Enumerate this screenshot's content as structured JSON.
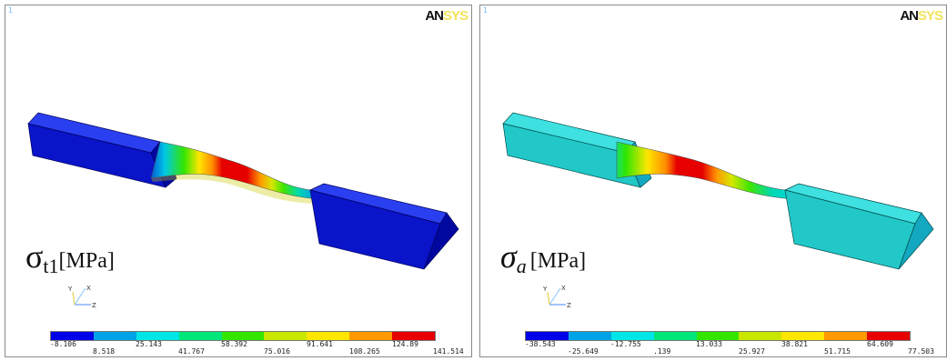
{
  "logo": {
    "part1": "AN",
    "part2": "SYS"
  },
  "window_number": "1",
  "colors": [
    "#0000e6",
    "#00a3e6",
    "#00e6e6",
    "#00e67a",
    "#33e600",
    "#c8e600",
    "#ffe600",
    "#ff9900",
    "#e60000"
  ],
  "plots": [
    {
      "id": "left",
      "label": {
        "symbol": "σ",
        "subscript": "t1",
        "unit": "[MPa]"
      },
      "legend_values": [
        "-8.106",
        "8.518",
        "25.143",
        "41.767",
        "58.392",
        "75.016",
        "91.641",
        "108.265",
        "124.89",
        "141.514"
      ]
    },
    {
      "id": "right",
      "label": {
        "symbol": "σ",
        "subscript": "a",
        "unit": "[MPa]"
      },
      "legend_values": [
        "-38.543",
        "-25.649",
        "-12.755",
        ".139",
        "13.033",
        "25.927",
        "38.821",
        "51.715",
        "64.609",
        "77.503"
      ]
    }
  ],
  "triad": {
    "x": "X",
    "y": "Y",
    "z": "Z"
  }
}
